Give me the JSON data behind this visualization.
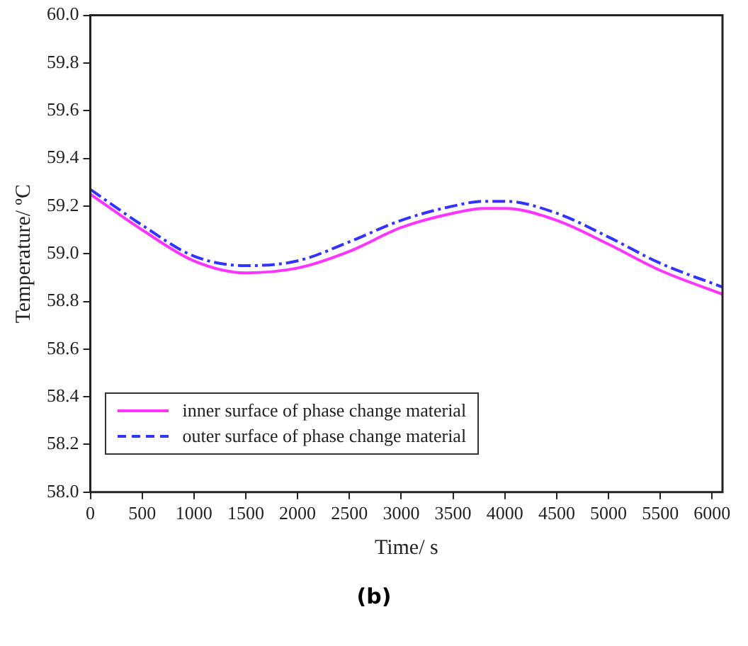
{
  "chart_data": {
    "type": "line",
    "xlabel": "Time/ s",
    "ylabel": "Temperature/ ºC",
    "annotations": [
      "(b)"
    ],
    "xlim": [
      0,
      6100
    ],
    "xticks": [
      0,
      500,
      1000,
      1500,
      2000,
      2500,
      3000,
      3500,
      4000,
      4500,
      5000,
      5500,
      6000
    ],
    "ylim": [
      58,
      60
    ],
    "yticks": [
      {
        "value": 58,
        "label": "58.0"
      },
      {
        "value": 58.2,
        "label": "58.2"
      },
      {
        "value": 58.4,
        "label": "58.4"
      },
      {
        "value": 58.6,
        "label": "58.6"
      },
      {
        "value": 58.8,
        "label": "58.8"
      },
      {
        "value": 59,
        "label": "59.0"
      },
      {
        "value": 59.2,
        "label": "59.2"
      },
      {
        "value": 59.4,
        "label": "59.4"
      },
      {
        "value": 59.6,
        "label": "59.6"
      },
      {
        "value": 59.8,
        "label": "59.8"
      },
      {
        "value": 60,
        "label": "60.0"
      }
    ],
    "x": [
      0,
      500,
      1000,
      1500,
      2000,
      2500,
      3000,
      3500,
      3800,
      4000,
      4500,
      5000,
      5500,
      6100
    ],
    "grid": false,
    "legend": "bottom left",
    "marker": "none",
    "series": [
      {
        "name": "inner surface of phase change material",
        "color": "#ff33ff",
        "line_style": "solid",
        "values": [
          59.25,
          59.1,
          58.97,
          58.92,
          58.94,
          59.01,
          59.11,
          59.17,
          59.19,
          59.19,
          59.14,
          59.04,
          58.93,
          58.83
        ]
      },
      {
        "name": "outer surface of phase change material",
        "color": "#3333ff",
        "line_style": "dashed",
        "values": [
          59.27,
          59.12,
          58.99,
          58.95,
          58.97,
          59.05,
          59.14,
          59.2,
          59.22,
          59.22,
          59.17,
          59.07,
          58.96,
          58.86
        ]
      }
    ]
  }
}
